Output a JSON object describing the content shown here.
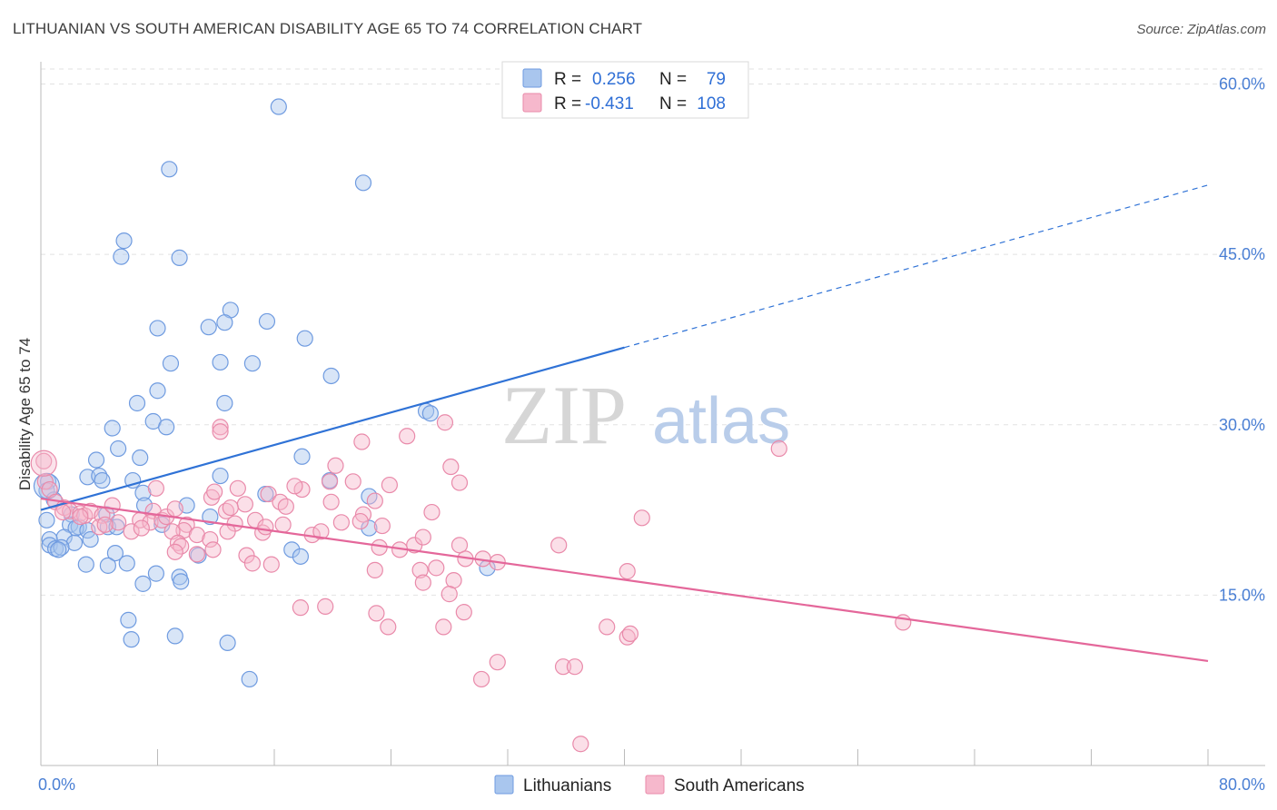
{
  "title": "LITHUANIAN VS SOUTH AMERICAN DISABILITY AGE 65 TO 74 CORRELATION CHART",
  "source": "Source: ZipAtlas.com",
  "watermark": {
    "zip": "ZIP",
    "atlas": "atlas"
  },
  "colors": {
    "blue_fill": "#a9c6ee",
    "blue_stroke": "#6f9be0",
    "blue_line": "#2f72d6",
    "pink_fill": "#f6b8cc",
    "pink_stroke": "#e98aaa",
    "pink_line": "#e4679a",
    "tick_text": "#4a7fd4",
    "grid": "#e2e2e2"
  },
  "legend": {
    "rows": [
      {
        "r_label": "R =",
        "r_value": "0.256",
        "n_label": "N =",
        "n_value": "79"
      },
      {
        "r_label": "R =",
        "r_value": "-0.431",
        "n_label": "N =",
        "n_value": "108"
      }
    ]
  },
  "bottom_legend": [
    "Lithuanians",
    "South Americans"
  ],
  "chart_data": {
    "type": "scatter",
    "xlabel": "",
    "ylabel": "Disability Age 65 to 74",
    "xlim": [
      0,
      80
    ],
    "ylim": [
      0,
      61
    ],
    "x_tick_labels": {
      "min": "0.0%",
      "max": "80.0%"
    },
    "y_ticks": [
      15,
      30,
      45,
      60
    ],
    "y_tick_labels": [
      "15.0%",
      "30.0%",
      "45.0%",
      "60.0%"
    ],
    "grid": true,
    "series": [
      {
        "name": "Lithuanians",
        "points": [
          [
            16.3,
            58.0
          ],
          [
            8.8,
            52.5
          ],
          [
            22.1,
            51.3
          ],
          [
            5.7,
            46.2
          ],
          [
            5.5,
            44.8
          ],
          [
            9.5,
            44.7
          ],
          [
            13.0,
            40.1
          ],
          [
            15.5,
            39.1
          ],
          [
            12.6,
            39.0
          ],
          [
            8.0,
            38.5
          ],
          [
            11.5,
            38.6
          ],
          [
            18.1,
            37.6
          ],
          [
            8.9,
            35.4
          ],
          [
            12.3,
            35.5
          ],
          [
            14.5,
            35.4
          ],
          [
            19.9,
            34.3
          ],
          [
            8.0,
            33.0
          ],
          [
            6.6,
            31.9
          ],
          [
            12.6,
            31.9
          ],
          [
            26.4,
            31.2
          ],
          [
            26.7,
            31.0
          ],
          [
            7.7,
            30.3
          ],
          [
            8.6,
            29.8
          ],
          [
            4.9,
            29.7
          ],
          [
            5.3,
            27.9
          ],
          [
            3.8,
            26.9
          ],
          [
            6.8,
            27.1
          ],
          [
            17.9,
            27.2
          ],
          [
            3.2,
            25.4
          ],
          [
            4.0,
            25.5
          ],
          [
            4.2,
            25.1
          ],
          [
            6.3,
            25.1
          ],
          [
            12.3,
            25.5
          ],
          [
            19.8,
            25.1
          ],
          [
            0.5,
            25.0
          ],
          [
            0.4,
            24.2
          ],
          [
            7.0,
            24.0
          ],
          [
            15.4,
            23.9
          ],
          [
            22.5,
            23.7
          ],
          [
            0.9,
            23.4
          ],
          [
            10.0,
            22.9
          ],
          [
            7.1,
            22.9
          ],
          [
            2.1,
            22.1
          ],
          [
            4.5,
            22.1
          ],
          [
            11.6,
            21.9
          ],
          [
            2.0,
            21.2
          ],
          [
            4.6,
            21.0
          ],
          [
            2.6,
            21.0
          ],
          [
            8.3,
            21.2
          ],
          [
            2.4,
            20.9
          ],
          [
            3.2,
            20.7
          ],
          [
            5.2,
            21.0
          ],
          [
            22.5,
            20.9
          ],
          [
            1.6,
            20.1
          ],
          [
            0.6,
            19.9
          ],
          [
            2.3,
            19.6
          ],
          [
            3.4,
            19.9
          ],
          [
            0.6,
            19.4
          ],
          [
            1.0,
            19.1
          ],
          [
            1.4,
            19.2
          ],
          [
            1.2,
            19.0
          ],
          [
            5.1,
            18.7
          ],
          [
            17.2,
            19.0
          ],
          [
            10.8,
            18.5
          ],
          [
            17.8,
            18.4
          ],
          [
            3.1,
            17.7
          ],
          [
            4.6,
            17.6
          ],
          [
            5.9,
            17.8
          ],
          [
            7.9,
            16.9
          ],
          [
            9.5,
            16.6
          ],
          [
            9.6,
            16.2
          ],
          [
            7.0,
            16.0
          ],
          [
            30.6,
            17.4
          ],
          [
            6.0,
            12.8
          ],
          [
            6.2,
            11.1
          ],
          [
            9.2,
            11.4
          ],
          [
            12.8,
            10.8
          ],
          [
            14.3,
            7.6
          ],
          [
            0.4,
            21.6
          ]
        ]
      },
      {
        "name": "South Americans",
        "points": [
          [
            0.2,
            26.8
          ],
          [
            0.3,
            25.0
          ],
          [
            0.6,
            24.3
          ],
          [
            1.0,
            23.2
          ],
          [
            1.6,
            22.7
          ],
          [
            2.0,
            22.4
          ],
          [
            2.7,
            22.2
          ],
          [
            3.0,
            22.0
          ],
          [
            3.4,
            22.4
          ],
          [
            2.7,
            21.9
          ],
          [
            4.2,
            22.0
          ],
          [
            1.5,
            22.3
          ],
          [
            4.9,
            22.9
          ],
          [
            6.8,
            21.6
          ],
          [
            7.7,
            22.4
          ],
          [
            5.3,
            21.4
          ],
          [
            4.0,
            21.0
          ],
          [
            4.4,
            21.2
          ],
          [
            6.2,
            20.6
          ],
          [
            7.5,
            21.4
          ],
          [
            6.9,
            20.9
          ],
          [
            8.3,
            21.6
          ],
          [
            8.6,
            21.9
          ],
          [
            9.2,
            22.6
          ],
          [
            7.9,
            24.4
          ],
          [
            11.7,
            23.6
          ],
          [
            11.9,
            24.1
          ],
          [
            13.5,
            24.4
          ],
          [
            14.0,
            23.0
          ],
          [
            15.6,
            23.9
          ],
          [
            16.4,
            23.2
          ],
          [
            17.9,
            24.3
          ],
          [
            19.9,
            23.2
          ],
          [
            19.8,
            25.0
          ],
          [
            21.4,
            25.0
          ],
          [
            22.1,
            22.1
          ],
          [
            23.9,
            24.7
          ],
          [
            26.8,
            22.3
          ],
          [
            28.1,
            26.3
          ],
          [
            28.7,
            24.9
          ],
          [
            22.0,
            28.5
          ],
          [
            25.1,
            29.0
          ],
          [
            27.7,
            30.2
          ],
          [
            22.9,
            23.3
          ],
          [
            20.2,
            26.4
          ],
          [
            16.8,
            22.8
          ],
          [
            17.4,
            24.6
          ],
          [
            14.7,
            21.6
          ],
          [
            13.3,
            21.3
          ],
          [
            10.0,
            21.2
          ],
          [
            9.8,
            20.7
          ],
          [
            9.0,
            20.6
          ],
          [
            10.7,
            20.3
          ],
          [
            9.4,
            19.6
          ],
          [
            9.6,
            19.3
          ],
          [
            11.6,
            19.9
          ],
          [
            11.8,
            19.0
          ],
          [
            9.2,
            18.8
          ],
          [
            10.7,
            18.6
          ],
          [
            12.7,
            22.4
          ],
          [
            12.8,
            20.6
          ],
          [
            15.2,
            20.5
          ],
          [
            15.4,
            21.0
          ],
          [
            16.6,
            21.2
          ],
          [
            18.6,
            20.3
          ],
          [
            19.2,
            20.6
          ],
          [
            20.6,
            21.4
          ],
          [
            21.9,
            21.5
          ],
          [
            23.4,
            21.1
          ],
          [
            23.2,
            19.2
          ],
          [
            24.6,
            19.0
          ],
          [
            25.6,
            19.4
          ],
          [
            26.2,
            20.1
          ],
          [
            26.0,
            17.2
          ],
          [
            27.1,
            17.4
          ],
          [
            28.7,
            19.4
          ],
          [
            29.1,
            18.2
          ],
          [
            31.3,
            17.9
          ],
          [
            30.3,
            18.2
          ],
          [
            35.5,
            19.4
          ],
          [
            41.2,
            21.8
          ],
          [
            40.2,
            17.1
          ],
          [
            14.1,
            18.5
          ],
          [
            14.5,
            17.8
          ],
          [
            15.8,
            17.7
          ],
          [
            22.9,
            17.2
          ],
          [
            26.2,
            16.1
          ],
          [
            28.3,
            16.3
          ],
          [
            28.0,
            15.1
          ],
          [
            12.3,
            29.8
          ],
          [
            12.3,
            29.4
          ],
          [
            13.0,
            22.7
          ],
          [
            17.8,
            13.9
          ],
          [
            19.5,
            14.0
          ],
          [
            23.0,
            13.4
          ],
          [
            23.8,
            12.2
          ],
          [
            27.6,
            12.2
          ],
          [
            29.0,
            13.5
          ],
          [
            38.8,
            12.2
          ],
          [
            40.2,
            11.3
          ],
          [
            40.4,
            11.6
          ],
          [
            31.3,
            9.1
          ],
          [
            35.8,
            8.7
          ],
          [
            36.6,
            8.7
          ],
          [
            30.2,
            7.6
          ],
          [
            37.0,
            1.9
          ],
          [
            59.1,
            12.6
          ],
          [
            50.6,
            27.9
          ]
        ]
      }
    ],
    "trendlines": [
      {
        "series": "Lithuanians",
        "solid_from": [
          0,
          22.5
        ],
        "solid_to": [
          40,
          36.8
        ],
        "dashed_to": [
          80,
          51.1
        ]
      },
      {
        "series": "South Americans",
        "from": [
          0,
          23.5
        ],
        "to": [
          80,
          9.2
        ]
      }
    ]
  }
}
